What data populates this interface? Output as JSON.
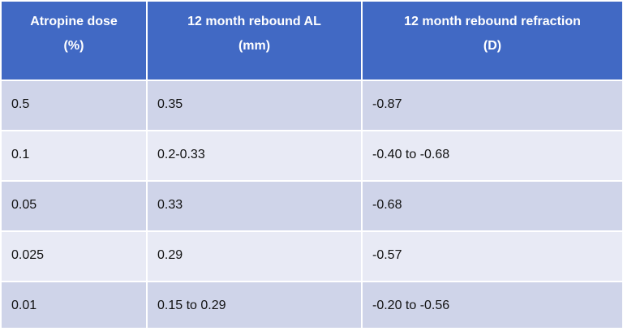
{
  "table": {
    "headers": [
      {
        "lines": [
          "Atropine  dose",
          "(%)"
        ]
      },
      {
        "lines": [
          "12 month rebound AL",
          "(mm)"
        ]
      },
      {
        "lines": [
          "12 month rebound refraction",
          "(D)"
        ]
      }
    ],
    "rows": [
      [
        "0.5",
        "0.35",
        "-0.87"
      ],
      [
        "0.1",
        "0.2-0.33",
        "-0.40 to -0.68"
      ],
      [
        "0.05",
        "0.33",
        "-0.68"
      ],
      [
        "0.025",
        "0.29",
        "-0.57"
      ],
      [
        "0.01",
        "0.15 to 0.29",
        "-0.20 to -0.56"
      ]
    ]
  },
  "colors": {
    "header_bg": "#4169c4",
    "header_text": "#ffffff",
    "row_band_dark": "#cfd4e9",
    "row_band_light": "#e8eaf5"
  }
}
